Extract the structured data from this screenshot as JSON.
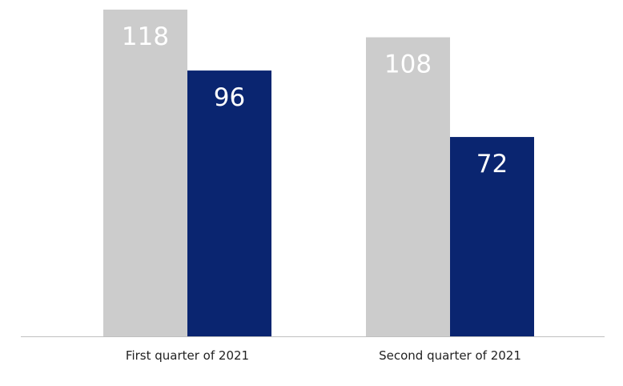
{
  "chart_data": {
    "type": "bar",
    "categories": [
      "First quarter of 2021",
      "Second quarter of 2021"
    ],
    "series": [
      {
        "values": [
          118,
          108
        ],
        "color": "#cccccc"
      },
      {
        "values": [
          96,
          72
        ],
        "color": "#0a2570"
      }
    ],
    "ylim": [
      0,
      118
    ],
    "grid": false,
    "legend": "none",
    "data_labels": true,
    "axis_color": "#c0c0c0"
  }
}
